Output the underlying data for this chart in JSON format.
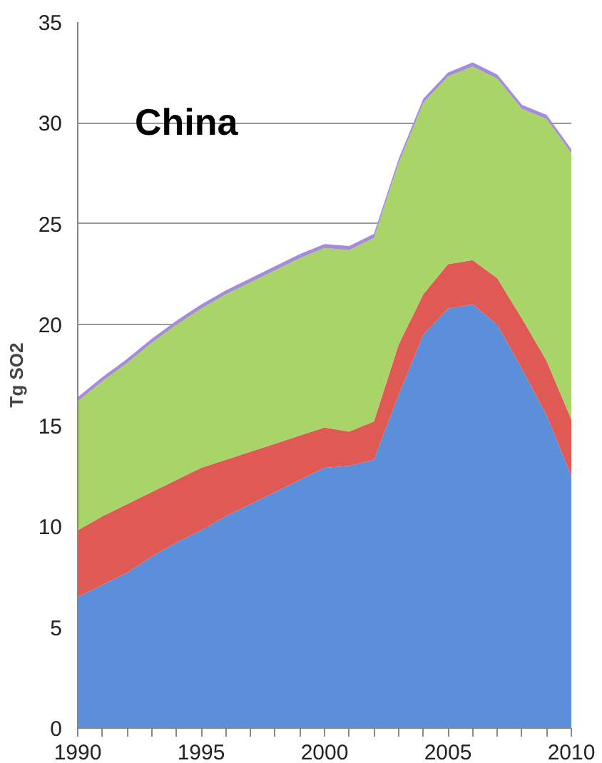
{
  "chart_data": {
    "type": "area",
    "stacked": true,
    "title": "China",
    "ylabel": "Tg SO2",
    "x": [
      1990,
      1991,
      1992,
      1993,
      1994,
      1995,
      1996,
      1997,
      1998,
      1999,
      2000,
      2001,
      2002,
      2003,
      2004,
      2005,
      2006,
      2007,
      2008,
      2009,
      2010
    ],
    "series": [
      {
        "color": "#5b8fd9",
        "values": [
          6.5,
          7.1,
          7.7,
          8.5,
          9.2,
          9.8,
          10.5,
          11.1,
          11.7,
          12.3,
          12.9,
          13.0,
          13.3,
          16.5,
          19.5,
          20.8,
          21.0,
          20.0,
          17.8,
          15.5,
          12.5
        ]
      },
      {
        "color": "#e05a55",
        "values": [
          3.3,
          3.4,
          3.4,
          3.2,
          3.1,
          3.1,
          2.8,
          2.6,
          2.4,
          2.2,
          2.0,
          1.7,
          1.9,
          2.5,
          2.0,
          2.2,
          2.2,
          2.3,
          2.5,
          2.7,
          2.8
        ]
      },
      {
        "color": "#a8d468",
        "values": [
          6.4,
          6.7,
          7.0,
          7.4,
          7.7,
          7.9,
          8.2,
          8.4,
          8.6,
          8.8,
          8.9,
          9.0,
          9.1,
          9.0,
          9.5,
          9.3,
          9.6,
          9.9,
          10.4,
          12.0,
          13.2
        ]
      },
      {
        "color": "#a68bd8",
        "values": [
          0.2,
          0.2,
          0.2,
          0.2,
          0.2,
          0.2,
          0.2,
          0.2,
          0.2,
          0.2,
          0.2,
          0.2,
          0.2,
          0.2,
          0.2,
          0.2,
          0.2,
          0.2,
          0.2,
          0.2,
          0.2
        ]
      }
    ],
    "xlim": [
      1990,
      2010
    ],
    "ylim": [
      0,
      35
    ],
    "xticks": [
      1990,
      {
        "value": 1991,
        "label": null
      },
      {
        "value": 1992,
        "label": null
      },
      {
        "value": 1993,
        "label": null
      },
      {
        "value": 1994,
        "label": null
      },
      1995,
      {
        "value": 1996,
        "label": null
      },
      {
        "value": 1997,
        "label": null
      },
      {
        "value": 1998,
        "label": null
      },
      {
        "value": 1999,
        "label": null
      },
      2000,
      {
        "value": 2001,
        "label": null
      },
      {
        "value": 2002,
        "label": null
      },
      {
        "value": 2003,
        "label": null
      },
      {
        "value": 2004,
        "label": null
      },
      2005,
      {
        "value": 2006,
        "label": null
      },
      {
        "value": 2007,
        "label": null
      },
      {
        "value": 2008,
        "label": null
      },
      {
        "value": 2009,
        "label": null
      },
      2010
    ],
    "yticks": [
      0,
      5,
      10,
      15,
      20,
      25,
      30,
      35
    ],
    "grid": "y"
  }
}
